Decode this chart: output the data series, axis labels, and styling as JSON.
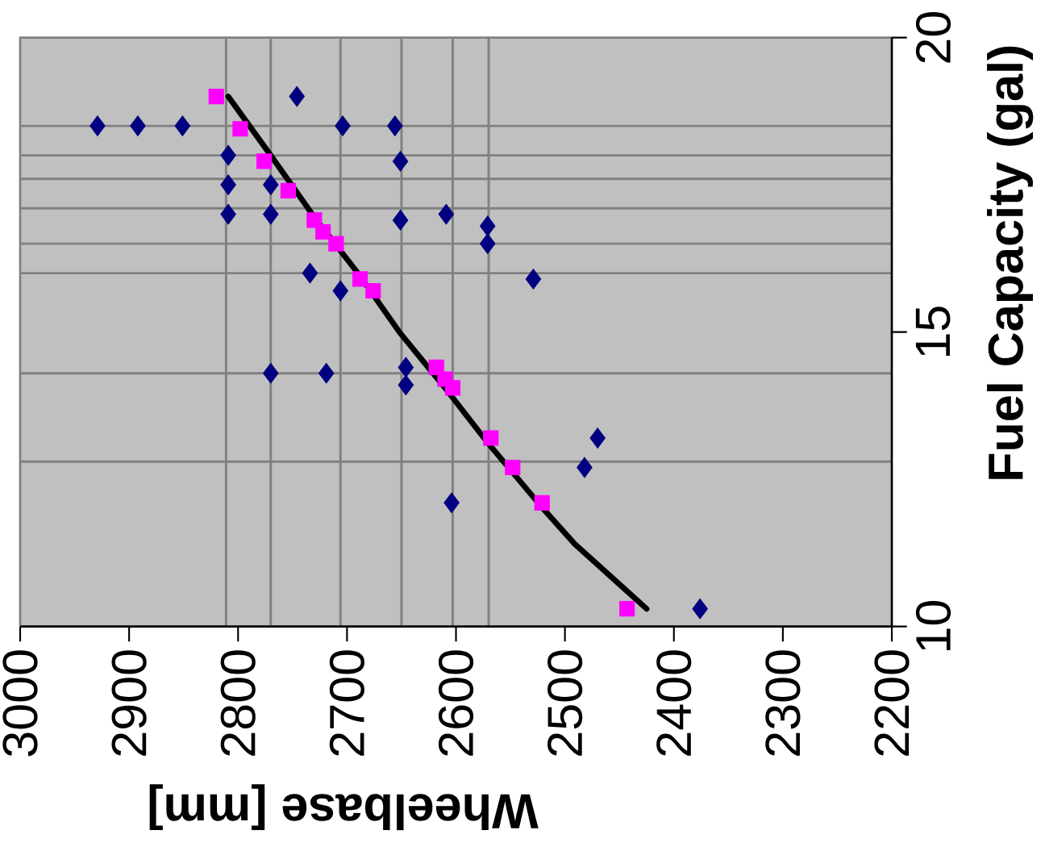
{
  "chart_data": {
    "type": "scatter",
    "xlabel": "Wheelbase [mm]",
    "ylabel": "Fuel Capacity (gal)",
    "xlim": [
      3000,
      2200
    ],
    "ylim": [
      10,
      20
    ],
    "xticks": [
      3000,
      2900,
      2800,
      2700,
      2600,
      2500,
      2400,
      2300,
      2200
    ],
    "yticks": [
      10,
      15,
      20
    ],
    "series": [
      {
        "type": "scatter",
        "marker": "diamond",
        "color": "#000080",
        "x": [
          2929,
          2892,
          2851,
          2746,
          2704,
          2656,
          2809,
          2809,
          2809,
          2770,
          2770,
          2734,
          2706,
          2651,
          2651,
          2609,
          2571,
          2571,
          2529,
          2770,
          2719,
          2646,
          2646,
          2604,
          2482,
          2470,
          2376
        ],
        "values": [
          18.5,
          18.5,
          18.5,
          19.0,
          18.5,
          18.5,
          18.0,
          17.5,
          17.0,
          17.5,
          17.0,
          16.0,
          15.7,
          17.9,
          16.9,
          17.0,
          16.8,
          16.5,
          15.9,
          14.3,
          14.3,
          14.4,
          14.1,
          12.1,
          12.7,
          13.2,
          10.3
        ]
      },
      {
        "type": "scatter",
        "marker": "square",
        "color": "#ff00ff",
        "x": [
          2820,
          2798,
          2776,
          2754,
          2730,
          2722,
          2710,
          2688,
          2676,
          2618,
          2610,
          2603,
          2568,
          2548,
          2521,
          2443
        ],
        "values": [
          19.0,
          18.45,
          17.9,
          17.4,
          16.9,
          16.7,
          16.5,
          15.9,
          15.7,
          14.4,
          14.2,
          14.05,
          13.2,
          12.7,
          12.1,
          10.3
        ]
      },
      {
        "type": "line",
        "marker": "none",
        "color": "#000000",
        "x": [
          2809,
          2770,
          2730,
          2690,
          2652,
          2610,
          2570,
          2520,
          2491,
          2425
        ],
        "values": [
          19.0,
          18.0,
          16.95,
          16.0,
          15.0,
          14.05,
          13.1,
          12.0,
          11.4,
          10.3
        ]
      }
    ],
    "ref_lines": [
      {
        "axis": "x",
        "value": 2811,
        "color": "#808080"
      },
      {
        "axis": "x",
        "value": 2770,
        "color": "#808080"
      },
      {
        "axis": "x",
        "value": 2706,
        "color": "#808080"
      },
      {
        "axis": "x",
        "value": 2650,
        "color": "#808080"
      },
      {
        "axis": "x",
        "value": 2603,
        "color": "#808080"
      },
      {
        "axis": "x",
        "value": 2570,
        "color": "#808080"
      },
      {
        "axis": "y",
        "value": 18.5,
        "color": "#808080"
      },
      {
        "axis": "y",
        "value": 18.0,
        "color": "#808080"
      },
      {
        "axis": "y",
        "value": 17.6,
        "color": "#808080"
      },
      {
        "axis": "y",
        "value": 17.1,
        "color": "#808080"
      },
      {
        "axis": "y",
        "value": 16.5,
        "color": "#808080"
      },
      {
        "axis": "y",
        "value": 16.0,
        "color": "#808080"
      },
      {
        "axis": "y",
        "value": 14.3,
        "color": "#808080"
      },
      {
        "axis": "y",
        "value": 12.8,
        "color": "#808080"
      }
    ]
  }
}
